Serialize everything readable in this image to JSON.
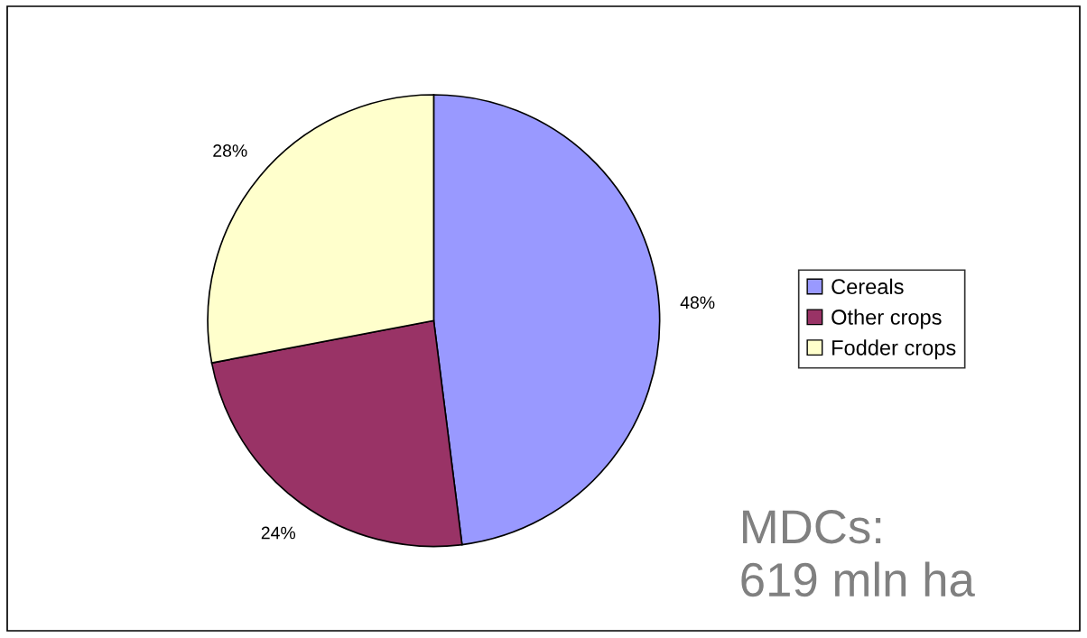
{
  "chart_data": {
    "type": "pie",
    "categories": [
      "Cereals",
      "Other crops",
      "Fodder crops"
    ],
    "values": [
      48,
      24,
      28
    ],
    "colors": [
      "#9999ff",
      "#993366",
      "#ffffcc"
    ],
    "value_labels": [
      "48%",
      "24%",
      "28%"
    ],
    "legend": "right",
    "annotations": [
      "MDCs:\n619 mln ha"
    ]
  }
}
